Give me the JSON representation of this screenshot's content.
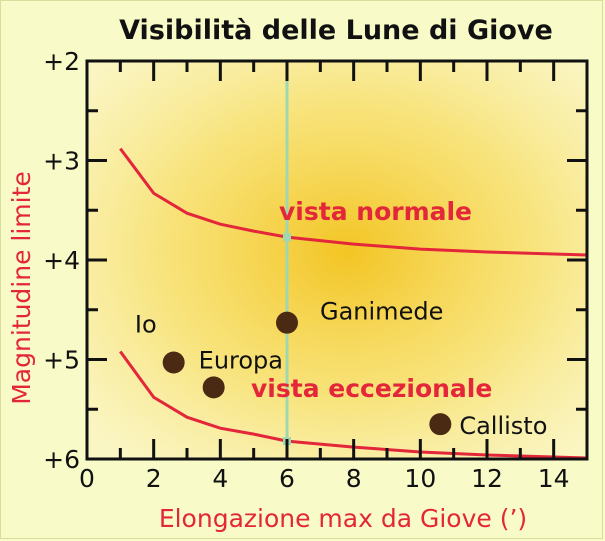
{
  "chart_data": {
    "type": "scatter",
    "title": "Visibilità delle Lune di Giove",
    "xlabel": "Elongazione max da Giove (’)",
    "ylabel": "Magnitudine limite",
    "xlim": [
      0,
      15
    ],
    "ylim": [
      2,
      6
    ],
    "y_inverted": true,
    "x_ticks": [
      0,
      2,
      4,
      6,
      8,
      10,
      12,
      14
    ],
    "y_ticks": [
      {
        "value": 2,
        "label": "+2"
      },
      {
        "value": 3,
        "label": "+3"
      },
      {
        "value": 4,
        "label": "+4"
      },
      {
        "value": 5,
        "label": "+5"
      },
      {
        "value": 6,
        "label": "+6"
      }
    ],
    "points": [
      {
        "name": "Io",
        "x": 2.6,
        "y": 5.03
      },
      {
        "name": "Europa",
        "x": 3.8,
        "y": 5.28
      },
      {
        "name": "Ganimede",
        "x": 6.0,
        "y": 4.63
      },
      {
        "name": "Callisto",
        "x": 10.6,
        "y": 5.65
      }
    ],
    "curves": [
      {
        "name": "vista normale",
        "points": [
          [
            1,
            2.88
          ],
          [
            2,
            3.33
          ],
          [
            3,
            3.53
          ],
          [
            4,
            3.64
          ],
          [
            5,
            3.71
          ],
          [
            6,
            3.77
          ],
          [
            8,
            3.84
          ],
          [
            10,
            3.89
          ],
          [
            12,
            3.92
          ],
          [
            15,
            3.95
          ]
        ]
      },
      {
        "name": "vista eccezionale",
        "points": [
          [
            1,
            4.92
          ],
          [
            2,
            5.38
          ],
          [
            3,
            5.58
          ],
          [
            4,
            5.69
          ],
          [
            5,
            5.75
          ],
          [
            6,
            5.82
          ],
          [
            8,
            5.88
          ],
          [
            10,
            5.93
          ],
          [
            12,
            5.96
          ],
          [
            15,
            5.99
          ]
        ]
      }
    ],
    "reference_line_x": 6,
    "colors": {
      "curve": "#e3263a",
      "point": "#4a2a12",
      "reference_line": "#9fd8b0",
      "glow": "#f2c22a",
      "background": "#f8fbc8"
    }
  }
}
